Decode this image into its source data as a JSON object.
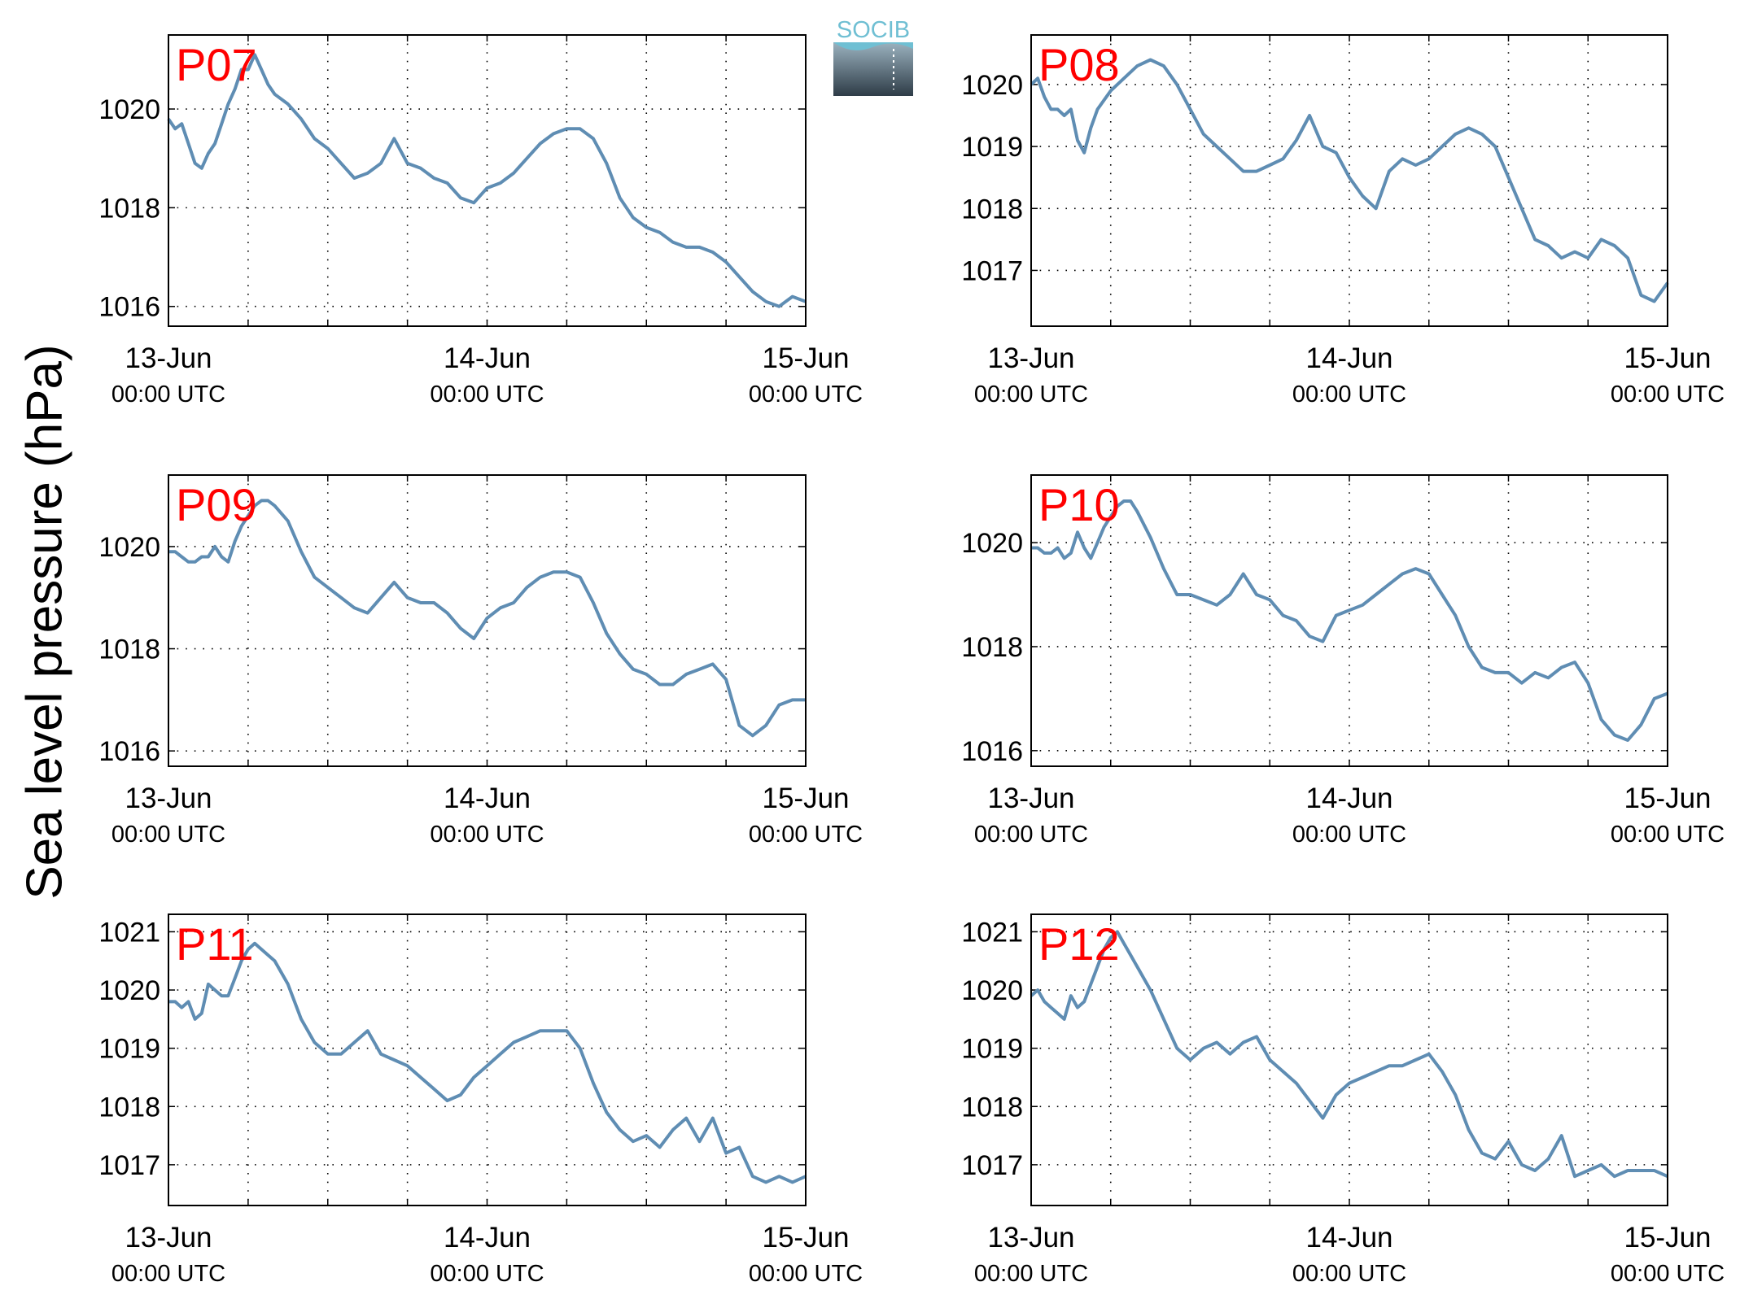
{
  "figure": {
    "ylabel": "Sea level pressure (hPa)",
    "logo_text": "SOCIB",
    "colors": {
      "line": "#5f8db3",
      "panel_label": "#ff0000",
      "logo_top": "#6fbfd3",
      "logo_bottom": "#2e3c47"
    }
  },
  "chart_data": [
    {
      "type": "line",
      "label": "P07",
      "x_ticks": [
        {
          "top": "13-Jun",
          "bottom": "00:00 UTC"
        },
        {
          "top": "14-Jun",
          "bottom": "00:00 UTC"
        },
        {
          "top": "15-Jun",
          "bottom": "00:00 UTC"
        }
      ],
      "y_ticks": [
        1016,
        1018,
        1020
      ],
      "ylim": [
        1015.6,
        1021.5
      ],
      "xlim_hours": [
        0,
        48
      ],
      "grid": true,
      "series": [
        {
          "x_hours": [
            0,
            0.5,
            1,
            1.5,
            2,
            2.5,
            3,
            3.5,
            4,
            4.5,
            5,
            5.5,
            6,
            6.5,
            7,
            7.5,
            8,
            9,
            10,
            11,
            12,
            13,
            14,
            15,
            16,
            17,
            18,
            19,
            20,
            21,
            22,
            23,
            24,
            25,
            26,
            27,
            28,
            29,
            30,
            31,
            32,
            33,
            34,
            35,
            36,
            37,
            38,
            39,
            40,
            41,
            42,
            43,
            44,
            45,
            46,
            47,
            48
          ],
          "values": [
            1019.8,
            1019.6,
            1019.7,
            1019.3,
            1018.9,
            1018.8,
            1019.1,
            1019.3,
            1019.7,
            1020.1,
            1020.4,
            1020.8,
            1020.8,
            1021.1,
            1020.8,
            1020.5,
            1020.3,
            1020.1,
            1019.8,
            1019.4,
            1019.2,
            1018.9,
            1018.6,
            1018.7,
            1018.9,
            1019.4,
            1018.9,
            1018.8,
            1018.6,
            1018.5,
            1018.2,
            1018.1,
            1018.4,
            1018.5,
            1018.7,
            1019.0,
            1019.3,
            1019.5,
            1019.6,
            1019.6,
            1019.4,
            1018.9,
            1018.2,
            1017.8,
            1017.6,
            1017.5,
            1017.3,
            1017.2,
            1017.2,
            1017.1,
            1016.9,
            1016.6,
            1016.3,
            1016.1,
            1016.0,
            1016.2,
            1016.1
          ]
        }
      ]
    },
    {
      "type": "line",
      "label": "P08",
      "x_ticks": [
        {
          "top": "13-Jun",
          "bottom": "00:00 UTC"
        },
        {
          "top": "14-Jun",
          "bottom": "00:00 UTC"
        },
        {
          "top": "15-Jun",
          "bottom": "00:00 UTC"
        }
      ],
      "y_ticks": [
        1017,
        1018,
        1019,
        1020
      ],
      "ylim": [
        1016.1,
        1020.8
      ],
      "xlim_hours": [
        0,
        48
      ],
      "grid": true,
      "series": [
        {
          "x_hours": [
            0,
            0.5,
            1,
            1.5,
            2,
            2.5,
            3,
            3.5,
            4,
            4.5,
            5,
            6,
            7,
            8,
            9,
            10,
            11,
            12,
            13,
            14,
            15,
            16,
            17,
            18,
            19,
            20,
            21,
            22,
            23,
            24,
            25,
            26,
            27,
            28,
            29,
            30,
            31,
            32,
            33,
            34,
            35,
            36,
            37,
            38,
            39,
            40,
            41,
            42,
            43,
            44,
            45,
            46,
            47,
            48
          ],
          "values": [
            1020.0,
            1020.1,
            1019.8,
            1019.6,
            1019.6,
            1019.5,
            1019.6,
            1019.1,
            1018.9,
            1019.3,
            1019.6,
            1019.9,
            1020.1,
            1020.3,
            1020.4,
            1020.3,
            1020.0,
            1019.6,
            1019.2,
            1019.0,
            1018.8,
            1018.6,
            1018.6,
            1018.7,
            1018.8,
            1019.1,
            1019.5,
            1019.0,
            1018.9,
            1018.5,
            1018.2,
            1018.0,
            1018.6,
            1018.8,
            1018.7,
            1018.8,
            1019.0,
            1019.2,
            1019.3,
            1019.2,
            1019.0,
            1018.5,
            1018.0,
            1017.5,
            1017.4,
            1017.2,
            1017.3,
            1017.2,
            1017.5,
            1017.4,
            1017.2,
            1016.6,
            1016.5,
            1016.8
          ]
        }
      ]
    },
    {
      "type": "line",
      "label": "P09",
      "x_ticks": [
        {
          "top": "13-Jun",
          "bottom": "00:00 UTC"
        },
        {
          "top": "14-Jun",
          "bottom": "00:00 UTC"
        },
        {
          "top": "15-Jun",
          "bottom": "00:00 UTC"
        }
      ],
      "y_ticks": [
        1016,
        1018,
        1020
      ],
      "ylim": [
        1015.7,
        1021.4
      ],
      "xlim_hours": [
        0,
        48
      ],
      "grid": true,
      "series": [
        {
          "x_hours": [
            0,
            0.5,
            1,
            1.5,
            2,
            2.5,
            3,
            3.5,
            4,
            4.5,
            5,
            5.5,
            6,
            6.5,
            7,
            7.5,
            8,
            9,
            10,
            11,
            12,
            13,
            14,
            15,
            16,
            17,
            18,
            19,
            20,
            21,
            22,
            23,
            24,
            25,
            26,
            27,
            28,
            29,
            30,
            31,
            32,
            33,
            34,
            35,
            36,
            37,
            38,
            39,
            40,
            41,
            42,
            43,
            44,
            45,
            46,
            47,
            48
          ],
          "values": [
            1019.9,
            1019.9,
            1019.8,
            1019.7,
            1019.7,
            1019.8,
            1019.8,
            1020.0,
            1019.8,
            1019.7,
            1020.1,
            1020.4,
            1020.6,
            1020.8,
            1020.9,
            1020.9,
            1020.8,
            1020.5,
            1019.9,
            1019.4,
            1019.2,
            1019.0,
            1018.8,
            1018.7,
            1019.0,
            1019.3,
            1019.0,
            1018.9,
            1018.9,
            1018.7,
            1018.4,
            1018.2,
            1018.6,
            1018.8,
            1018.9,
            1019.2,
            1019.4,
            1019.5,
            1019.5,
            1019.4,
            1018.9,
            1018.3,
            1017.9,
            1017.6,
            1017.5,
            1017.3,
            1017.3,
            1017.5,
            1017.6,
            1017.7,
            1017.4,
            1016.5,
            1016.3,
            1016.5,
            1016.9,
            1017.0,
            1017.0
          ]
        }
      ]
    },
    {
      "type": "line",
      "label": "P10",
      "x_ticks": [
        {
          "top": "13-Jun",
          "bottom": "00:00 UTC"
        },
        {
          "top": "14-Jun",
          "bottom": "00:00 UTC"
        },
        {
          "top": "15-Jun",
          "bottom": "00:00 UTC"
        }
      ],
      "y_ticks": [
        1016,
        1018,
        1020
      ],
      "ylim": [
        1015.7,
        1021.3
      ],
      "xlim_hours": [
        0,
        48
      ],
      "grid": true,
      "series": [
        {
          "x_hours": [
            0,
            0.5,
            1,
            1.5,
            2,
            2.5,
            3,
            3.5,
            4,
            4.5,
            5,
            5.5,
            6,
            6.5,
            7,
            7.5,
            8,
            9,
            10,
            11,
            12,
            13,
            14,
            15,
            16,
            17,
            18,
            19,
            20,
            21,
            22,
            23,
            24,
            25,
            26,
            27,
            28,
            29,
            30,
            31,
            32,
            33,
            34,
            35,
            36,
            37,
            38,
            39,
            40,
            41,
            42,
            43,
            44,
            45,
            46,
            47,
            48
          ],
          "values": [
            1019.9,
            1019.9,
            1019.8,
            1019.8,
            1019.9,
            1019.7,
            1019.8,
            1020.2,
            1019.9,
            1019.7,
            1020.0,
            1020.3,
            1020.5,
            1020.7,
            1020.8,
            1020.8,
            1020.6,
            1020.1,
            1019.5,
            1019.0,
            1019.0,
            1018.9,
            1018.8,
            1019.0,
            1019.4,
            1019.0,
            1018.9,
            1018.6,
            1018.5,
            1018.2,
            1018.1,
            1018.6,
            1018.7,
            1018.8,
            1019.0,
            1019.2,
            1019.4,
            1019.5,
            1019.4,
            1019.0,
            1018.6,
            1018.0,
            1017.6,
            1017.5,
            1017.5,
            1017.3,
            1017.5,
            1017.4,
            1017.6,
            1017.7,
            1017.3,
            1016.6,
            1016.3,
            1016.2,
            1016.5,
            1017.0,
            1017.1
          ]
        }
      ]
    },
    {
      "type": "line",
      "label": "P11",
      "x_ticks": [
        {
          "top": "13-Jun",
          "bottom": "00:00 UTC"
        },
        {
          "top": "14-Jun",
          "bottom": "00:00 UTC"
        },
        {
          "top": "15-Jun",
          "bottom": "00:00 UTC"
        }
      ],
      "y_ticks": [
        1017,
        1018,
        1019,
        1020,
        1021
      ],
      "ylim": [
        1016.3,
        1021.3
      ],
      "xlim_hours": [
        0,
        48
      ],
      "grid": true,
      "series": [
        {
          "x_hours": [
            0,
            0.5,
            1,
            1.5,
            2,
            2.5,
            3,
            3.5,
            4,
            4.5,
            5,
            5.5,
            6,
            6.5,
            7,
            7.5,
            8,
            9,
            10,
            11,
            12,
            13,
            14,
            15,
            16,
            17,
            18,
            19,
            20,
            21,
            22,
            23,
            24,
            25,
            26,
            27,
            28,
            29,
            30,
            31,
            32,
            33,
            34,
            35,
            36,
            37,
            38,
            39,
            40,
            41,
            42,
            43,
            44,
            45,
            46,
            47,
            48
          ],
          "values": [
            1019.8,
            1019.8,
            1019.7,
            1019.8,
            1019.5,
            1019.6,
            1020.1,
            1020.0,
            1019.9,
            1019.9,
            1020.2,
            1020.5,
            1020.7,
            1020.8,
            1020.7,
            1020.6,
            1020.5,
            1020.1,
            1019.5,
            1019.1,
            1018.9,
            1018.9,
            1019.1,
            1019.3,
            1018.9,
            1018.8,
            1018.7,
            1018.5,
            1018.3,
            1018.1,
            1018.2,
            1018.5,
            1018.7,
            1018.9,
            1019.1,
            1019.2,
            1019.3,
            1019.3,
            1019.3,
            1019.0,
            1018.4,
            1017.9,
            1017.6,
            1017.4,
            1017.5,
            1017.3,
            1017.6,
            1017.8,
            1017.4,
            1017.8,
            1017.2,
            1017.3,
            1016.8,
            1016.7,
            1016.8,
            1016.7,
            1016.8
          ]
        }
      ]
    },
    {
      "type": "line",
      "label": "P12",
      "x_ticks": [
        {
          "top": "13-Jun",
          "bottom": "00:00 UTC"
        },
        {
          "top": "14-Jun",
          "bottom": "00:00 UTC"
        },
        {
          "top": "15-Jun",
          "bottom": "00:00 UTC"
        }
      ],
      "y_ticks": [
        1017,
        1018,
        1019,
        1020,
        1021
      ],
      "ylim": [
        1016.3,
        1021.3
      ],
      "xlim_hours": [
        0,
        48
      ],
      "grid": true,
      "series": [
        {
          "x_hours": [
            0,
            0.5,
            1,
            1.5,
            2,
            2.5,
            3,
            3.5,
            4,
            4.5,
            5,
            5.5,
            6,
            6.5,
            7,
            7.5,
            8,
            9,
            10,
            11,
            12,
            13,
            14,
            15,
            16,
            17,
            18,
            19,
            20,
            21,
            22,
            23,
            24,
            25,
            26,
            27,
            28,
            29,
            30,
            31,
            32,
            33,
            34,
            35,
            36,
            37,
            38,
            39,
            40,
            41,
            42,
            43,
            44,
            45,
            46,
            47,
            48
          ],
          "values": [
            1019.9,
            1020.0,
            1019.8,
            1019.7,
            1019.6,
            1019.5,
            1019.9,
            1019.7,
            1019.8,
            1020.1,
            1020.4,
            1020.7,
            1020.9,
            1021.0,
            1020.8,
            1020.6,
            1020.4,
            1020.0,
            1019.5,
            1019.0,
            1018.8,
            1019.0,
            1019.1,
            1018.9,
            1019.1,
            1019.2,
            1018.8,
            1018.6,
            1018.4,
            1018.1,
            1017.8,
            1018.2,
            1018.4,
            1018.5,
            1018.6,
            1018.7,
            1018.7,
            1018.8,
            1018.9,
            1018.6,
            1018.2,
            1017.6,
            1017.2,
            1017.1,
            1017.4,
            1017.0,
            1016.9,
            1017.1,
            1017.5,
            1016.8,
            1016.9,
            1017.0,
            1016.8,
            1016.9,
            1016.9,
            1016.9,
            1016.8
          ]
        }
      ]
    }
  ]
}
